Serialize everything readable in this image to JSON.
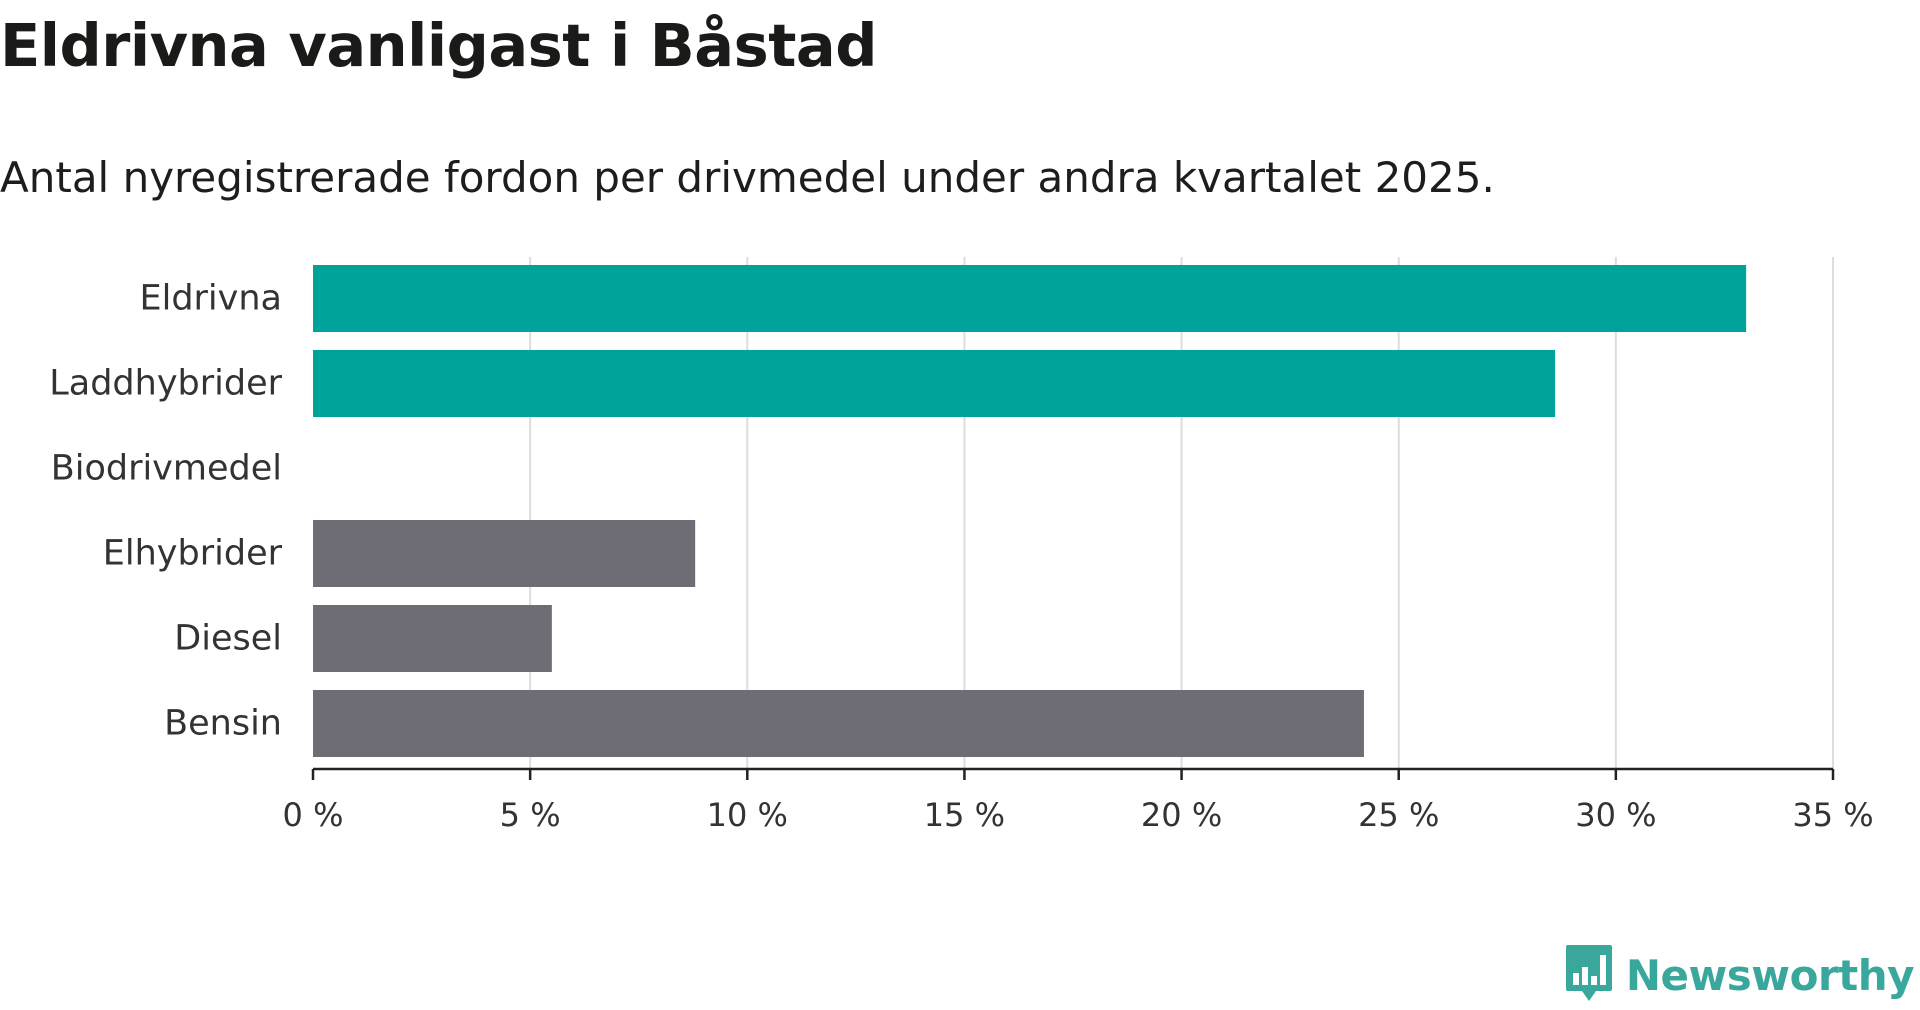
{
  "title": "Eldrivna vanligast i Båstad",
  "subtitle": "Antal nyregistrerade fordon per drivmedel under andra kvartalet 2025.",
  "brand": {
    "name": "Newsworthy",
    "color": "#3aa79c",
    "icon": "newsworthy-bar-chart-bubble-icon"
  },
  "colors": {
    "highlight": "#00a39a",
    "default": "#6e6d75",
    "grid": "#dddddd",
    "axis": "#222222"
  },
  "chart_data": {
    "type": "bar",
    "orientation": "horizontal",
    "title": "Eldrivna vanligast i Båstad",
    "subtitle": "Antal nyregistrerade fordon per drivmedel under andra kvartalet 2025.",
    "categories": [
      "Eldrivna",
      "Laddhybrider",
      "Biodrivmedel",
      "Elhybrider",
      "Diesel",
      "Bensin"
    ],
    "values": [
      33.0,
      28.6,
      0,
      8.8,
      5.5,
      24.2
    ],
    "highlight": [
      true,
      true,
      false,
      false,
      false,
      false
    ],
    "xlabel": "",
    "ylabel": "",
    "xlim": [
      0,
      35
    ],
    "xticks": [
      0,
      5,
      10,
      15,
      20,
      25,
      30,
      35
    ],
    "xtick_labels": [
      "0 %",
      "5 %",
      "10 %",
      "15 %",
      "20 %",
      "25 %",
      "30 %",
      "35 %"
    ],
    "unit": "%",
    "grid": true,
    "legend": false
  }
}
